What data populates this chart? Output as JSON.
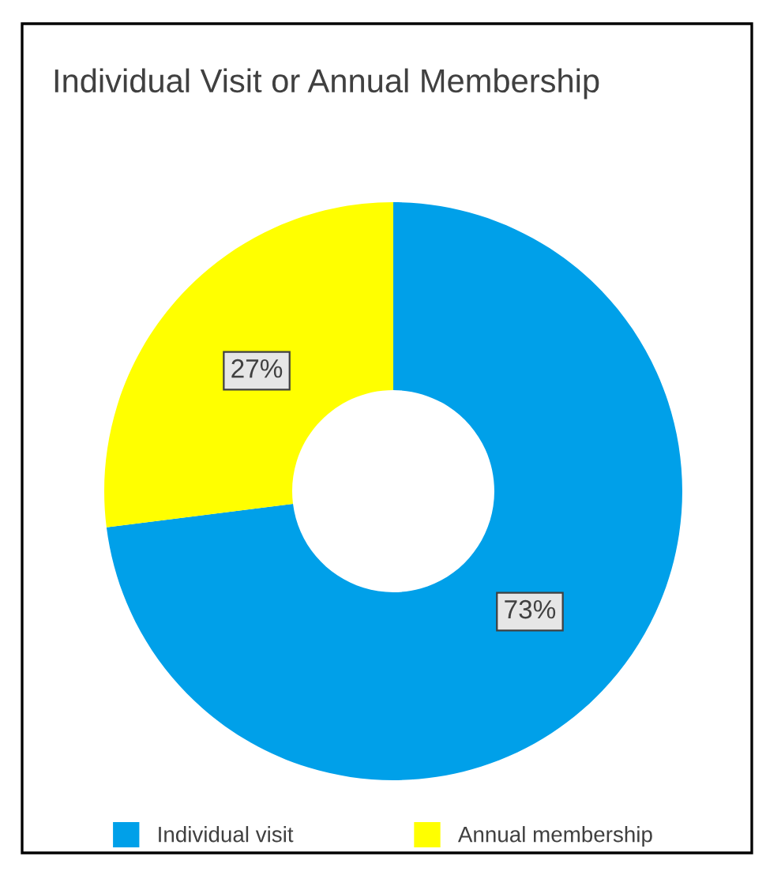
{
  "chart_data": {
    "type": "donut",
    "title": "Individual Visit or Annual Membership",
    "categories": [
      "Individual visit",
      "Annual membership"
    ],
    "values": [
      73,
      27
    ],
    "colors": [
      "#00a0e9",
      "#ffff00"
    ],
    "value_labels": [
      "73%",
      "27%"
    ],
    "legend": "bottom"
  }
}
